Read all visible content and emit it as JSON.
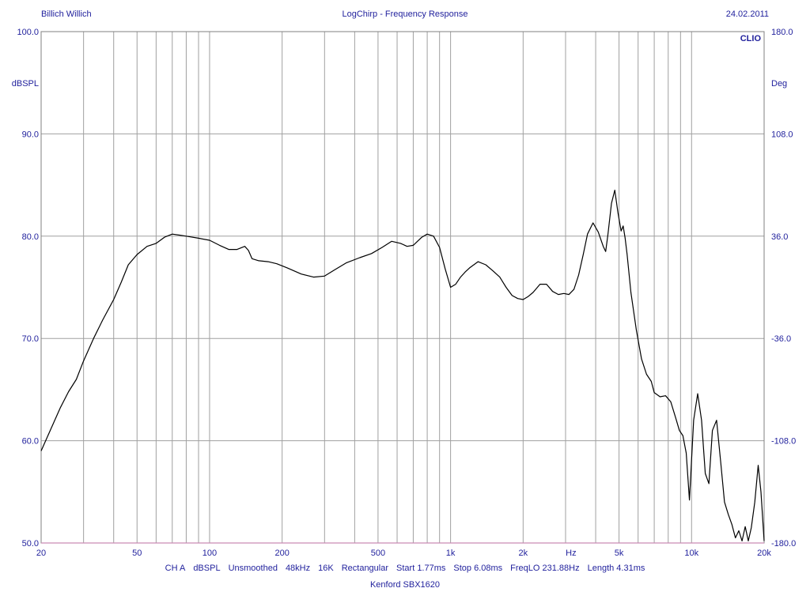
{
  "header": {
    "author": "Billich Willich",
    "title": "LogChirp - Frequency Response",
    "date": "24.02.2011"
  },
  "footer": {
    "settings": [
      "CH A",
      "dBSPL",
      "Unsmoothed",
      "48kHz",
      "16K",
      "Rectangular",
      "Start 1.77ms",
      "Stop 6.08ms",
      "FreqLO 231.88Hz",
      "Length 4.31ms"
    ],
    "device": "Kenford SBX1620"
  },
  "chart_data": {
    "type": "line",
    "title": "LogChirp - Frequency Response",
    "xlabel": "Hz",
    "ylabel": "dBSPL",
    "y2label": "Deg",
    "brand": "CLIO",
    "xscale": "log",
    "xlim": [
      20,
      20000
    ],
    "ylim": [
      50,
      100
    ],
    "y2lim": [
      -180,
      180
    ],
    "grid": true,
    "xticks": [
      {
        "value": 20,
        "label": "20"
      },
      {
        "value": 50,
        "label": "50"
      },
      {
        "value": 100,
        "label": "100"
      },
      {
        "value": 200,
        "label": "200"
      },
      {
        "value": 500,
        "label": "500"
      },
      {
        "value": 1000,
        "label": "1k"
      },
      {
        "value": 2000,
        "label": "2k"
      },
      {
        "value": 5000,
        "label": "5k"
      },
      {
        "value": 10000,
        "label": "10k"
      },
      {
        "value": 20000,
        "label": "20k"
      }
    ],
    "xaxis_unit_value": 3160,
    "yticks": [
      {
        "value": 50,
        "label": "50.0"
      },
      {
        "value": 60,
        "label": "60.0"
      },
      {
        "value": 70,
        "label": "70.0"
      },
      {
        "value": 80,
        "label": "80.0"
      },
      {
        "value": 90,
        "label": "90.0"
      },
      {
        "value": 100,
        "label": "100.0"
      }
    ],
    "y2ticks": [
      {
        "value": -180,
        "label": "-180.0"
      },
      {
        "value": -108,
        "label": "-108.0"
      },
      {
        "value": -36,
        "label": "-36.0"
      },
      {
        "value": 36,
        "label": "36.0"
      },
      {
        "value": 108,
        "label": "108.0"
      },
      {
        "value": 180,
        "label": "180.0"
      }
    ],
    "colors": {
      "curve": "#000000",
      "grid": "#a0a0a0",
      "frame": "#808080",
      "text": "#1f1f9c",
      "baseline": "#c98ab5"
    },
    "series": [
      {
        "x": [
          20,
          22,
          24,
          26,
          28,
          30,
          33,
          36,
          40,
          43,
          46,
          50,
          55,
          60,
          65,
          70,
          75,
          80,
          90,
          100,
          110,
          120,
          130,
          140,
          145,
          150,
          160,
          175,
          190,
          210,
          240,
          270,
          300,
          330,
          370,
          420,
          470,
          520,
          570,
          620,
          660,
          700,
          760,
          800,
          850,
          900,
          950,
          1000,
          1050,
          1100,
          1150,
          1200,
          1300,
          1400,
          1500,
          1600,
          1700,
          1800,
          1900,
          2000,
          2100,
          2200,
          2350,
          2500,
          2650,
          2800,
          2950,
          3100,
          3250,
          3400,
          3550,
          3700,
          3900,
          4100,
          4300,
          4400,
          4500,
          4650,
          4800,
          4950,
          5100,
          5200,
          5300,
          5400,
          5600,
          5900,
          6200,
          6500,
          6800,
          7000,
          7400,
          7800,
          8200,
          8600,
          8900,
          9200,
          9500,
          9800,
          10200,
          10600,
          11000,
          11400,
          11800,
          12200,
          12700,
          13200,
          13700,
          14200,
          14700,
          15200,
          15700,
          16200,
          16700,
          17200,
          17700,
          18300,
          18900,
          19400,
          20000
        ],
        "y": [
          59.0,
          61.2,
          63.2,
          64.8,
          66.0,
          67.8,
          70.0,
          71.8,
          73.8,
          75.5,
          77.2,
          78.2,
          79.0,
          79.3,
          79.9,
          80.2,
          80.1,
          80.0,
          79.8,
          79.6,
          79.1,
          78.7,
          78.7,
          79.0,
          78.6,
          77.8,
          77.6,
          77.5,
          77.3,
          76.9,
          76.3,
          76.0,
          76.1,
          76.7,
          77.4,
          77.9,
          78.3,
          78.9,
          79.5,
          79.3,
          79.0,
          79.1,
          79.9,
          80.2,
          80.0,
          78.9,
          76.8,
          75.0,
          75.3,
          76.0,
          76.5,
          76.9,
          77.5,
          77.2,
          76.6,
          76.0,
          75.0,
          74.2,
          73.9,
          73.8,
          74.1,
          74.5,
          75.3,
          75.3,
          74.6,
          74.3,
          74.4,
          74.3,
          74.8,
          76.2,
          78.2,
          80.2,
          81.3,
          80.4,
          79.0,
          78.5,
          80.2,
          83.2,
          84.5,
          82.3,
          80.5,
          81.0,
          79.8,
          78.2,
          74.5,
          70.8,
          68.0,
          66.5,
          65.8,
          64.7,
          64.3,
          64.4,
          63.8,
          62.2,
          61.0,
          60.5,
          58.8,
          54.2,
          62.0,
          64.6,
          62.0,
          56.8,
          55.8,
          61.0,
          62.0,
          58.0,
          54.0,
          52.8,
          51.8,
          50.5,
          51.2,
          50.2,
          51.6,
          50.2,
          51.5,
          54.0,
          57.6,
          55.0,
          50.2
        ]
      }
    ]
  }
}
